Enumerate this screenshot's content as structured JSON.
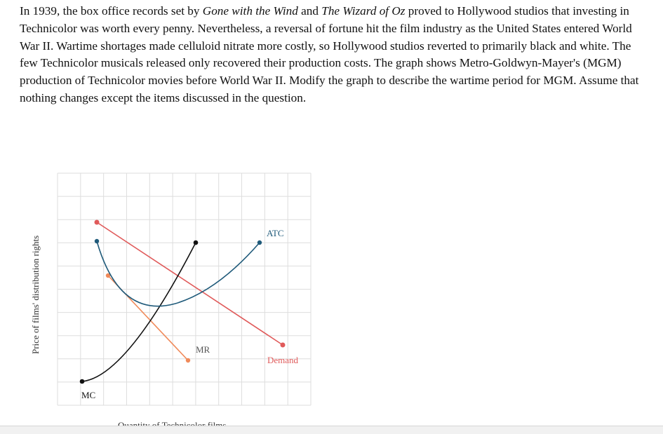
{
  "question": {
    "p1": "In 1939, the box office records set by ",
    "film1": "Gone with the Wind",
    "p2": " and ",
    "film2": "The Wizard of Oz",
    "p3": " proved to Hollywood studios that investing in Technicolor was worth every penny. Nevertheless, a reversal of fortune hit the film industry as the United States entered World War II. Wartime shortages made celluloid nitrate more costly, so Hollywood studios reverted to primarily black and white. The few Technicolor musicals released only recovered their production costs. The graph shows Metro-Goldwyn-Mayer's (MGM) production of Technicolor movies before World War II. Modify the graph to describe the wartime period for MGM. Assume that nothing changes except the items discussed in the question."
  },
  "graph": {
    "y_axis_label": "Price of films' distribution rights",
    "x_axis_label": "Quantity of Technicolor films",
    "curves": {
      "atc": {
        "label": "ATC",
        "color": "#1f5a7a"
      },
      "demand": {
        "label": "Demand",
        "color": "#e05a5a"
      },
      "mr": {
        "label": "MR",
        "color": "#f08a5a"
      },
      "mc": {
        "label": "MC",
        "color": "#111111"
      }
    },
    "grid_color": "#dddddd"
  }
}
